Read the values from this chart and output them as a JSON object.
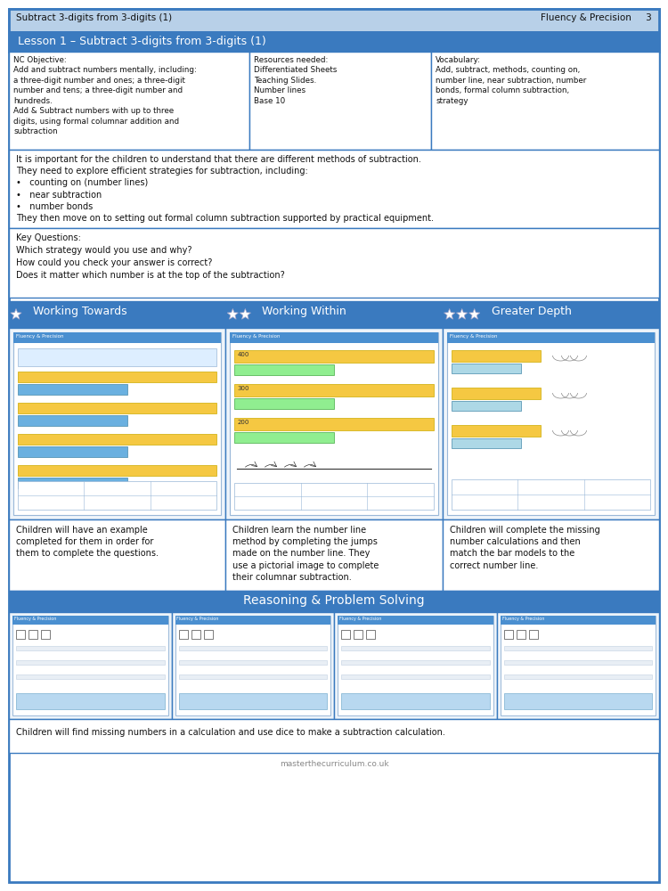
{
  "header_bg": "#b8d0e8",
  "header_text_left": "Subtract 3-digits from 3-digits (1)",
  "header_text_right": "Fluency & Precision",
  "header_page": "3",
  "lesson_title": "Lesson 1 – Subtract 3-digits from 3-digits (1)",
  "lesson_title_bg": "#3a7abf",
  "lesson_title_color": "#ffffff",
  "nc_objective_text": "NC Objective:\nAdd and subtract numbers mentally, including:\na three-digit number and ones; a three-digit\nnumber and tens; a three-digit number and\nhundreds.\nAdd & Subtract numbers with up to three\ndigits, using formal columnar addition and\nsubtraction",
  "resources_text": "Resources needed:\nDifferentiated Sheets\nTeaching Slides.\nNumber lines\nBase 10",
  "vocabulary_text": "Vocabulary:\nAdd, subtract, methods, counting on,\nnumber line, near subtraction, number\nbonds, formal column subtraction,\nstrategy",
  "main_text": "It is important for the children to understand that there are different methods of subtraction.\nThey need to explore efficient strategies for subtraction, including:\n•   counting on (number lines)\n•   near subtraction\n•   number bonds\nThey then move on to setting out formal column subtraction supported by practical equipment.",
  "key_questions_text": "Key Questions:\nWhich strategy would you use and why?\nHow could you check your answer is correct?\nDoes it matter which number is at the top of the subtraction?",
  "working_towards_title": "Working Towards",
  "working_within_title": "Working Within",
  "greater_depth_title": "Greater Depth",
  "section_bg": "#3a7abf",
  "section_text_color": "#ffffff",
  "working_towards_desc": "Children will have an example\ncompleted for them in order for\nthem to complete the questions.",
  "working_within_desc": "Children learn the number line\nmethod by completing the jumps\nmade on the number line. They\nuse a pictorial image to complete\ntheir columnar subtraction.",
  "greater_depth_desc": "Children will complete the missing\nnumber calculations and then\nmatch the bar models to the\ncorrect number line.",
  "reasoning_title": "Reasoning & Problem Solving",
  "reasoning_desc": "Children will find missing numbers in a calculation and use dice to make a subtraction calculation.",
  "border_color": "#3a7abf",
  "bg_color": "#ffffff",
  "footer_text": "masterthecurriculum.co.uk",
  "star_color": "#ffffff",
  "worksheet_bg": "#eef4fa",
  "worksheet_inner": "#ffffff",
  "worksheet_line": "#c8dce8",
  "worksheet_header_blue": "#4a8fd0",
  "worksheet_header_green": "#7abf5a",
  "worksheet_bar_yellow": "#f5c842",
  "worksheet_bar_blue": "#6ab0e0"
}
